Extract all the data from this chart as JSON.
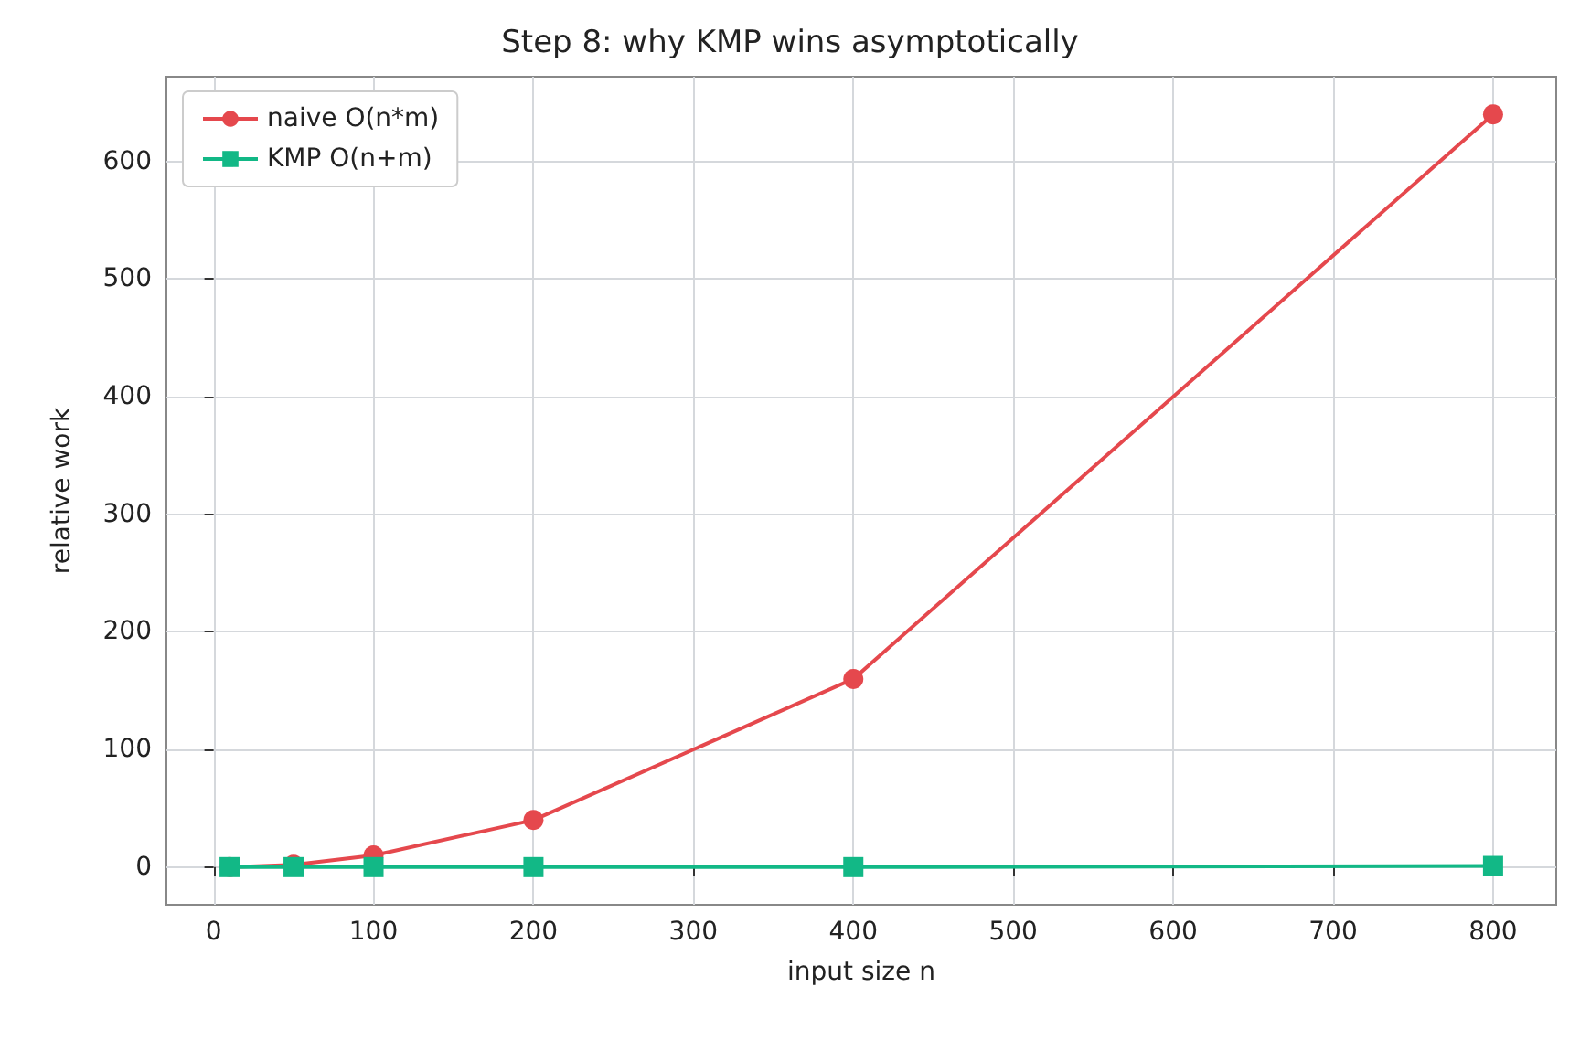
{
  "chart_data": {
    "type": "line",
    "title": "Step 8: why KMP wins asymptotically",
    "xlabel": "input size n",
    "ylabel": "relative work",
    "x": [
      10,
      50,
      100,
      200,
      400,
      800
    ],
    "series": [
      {
        "name": "naive O(n*m)",
        "color": "#e5484d",
        "values": [
          0,
          2,
          10,
          40,
          160,
          640
        ],
        "marker": "circle"
      },
      {
        "name": "KMP O(n+m)",
        "color": "#12b886",
        "values": [
          0,
          0,
          0,
          0,
          0,
          1
        ],
        "marker": "square"
      }
    ],
    "xlim": [
      -29.5,
      839.5
    ],
    "ylim": [
      -32,
      672
    ],
    "xticks": [
      0,
      100,
      200,
      300,
      400,
      500,
      600,
      700,
      800
    ],
    "yticks": [
      0,
      100,
      200,
      300,
      400,
      500,
      600
    ],
    "grid": true,
    "legend": "top left",
    "line_style": "solid"
  }
}
